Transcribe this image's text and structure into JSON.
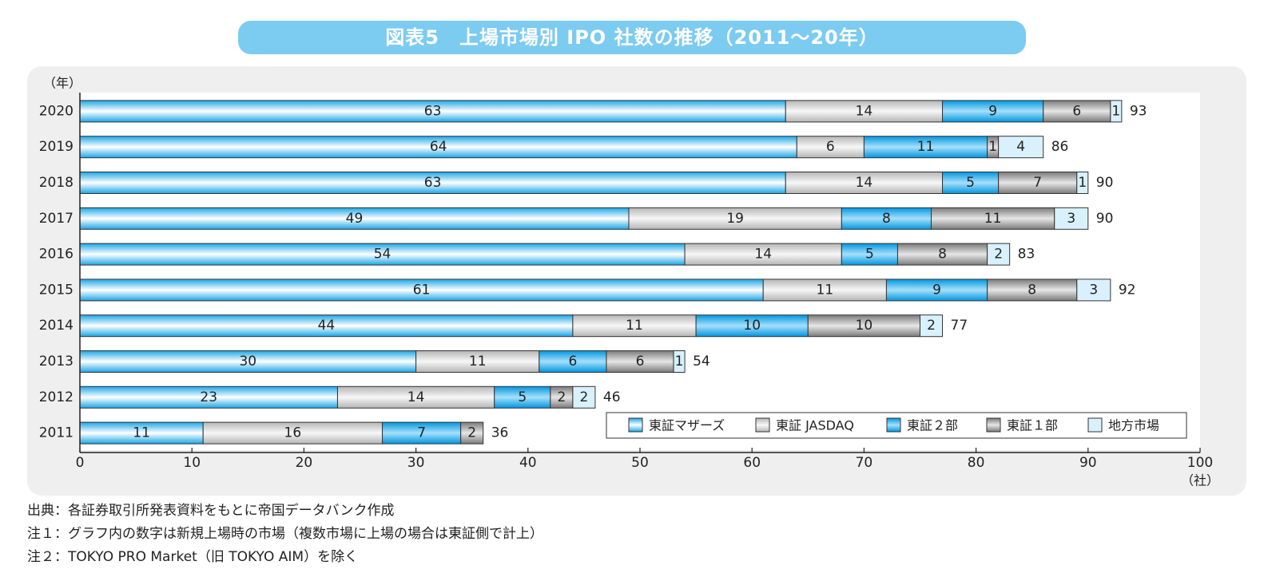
{
  "title": "図表5　上場市場別 IPO 社数の推移（2011～20年）",
  "chart_data": {
    "type": "bar",
    "orientation": "horizontal",
    "stacked": true,
    "year_axis_label": "（年）",
    "x_unit_label": "（社）",
    "xlim": [
      0,
      100
    ],
    "x_ticks": [
      0,
      10,
      20,
      30,
      40,
      50,
      60,
      70,
      80,
      90,
      100
    ],
    "categories": [
      "2020",
      "2019",
      "2018",
      "2017",
      "2016",
      "2015",
      "2014",
      "2013",
      "2012",
      "2011"
    ],
    "series": [
      {
        "name": "東証マザーズ",
        "values": [
          63,
          64,
          63,
          49,
          54,
          61,
          44,
          30,
          23,
          11
        ],
        "style": "blue-light"
      },
      {
        "name": "東証 JASDAQ",
        "values": [
          14,
          6,
          14,
          19,
          14,
          11,
          11,
          11,
          14,
          16
        ],
        "style": "gray-light"
      },
      {
        "name": "東証２部",
        "values": [
          9,
          11,
          5,
          8,
          5,
          9,
          10,
          6,
          5,
          7
        ],
        "style": "blue-deep"
      },
      {
        "name": "東証１部",
        "values": [
          6,
          1,
          7,
          11,
          8,
          8,
          10,
          6,
          2,
          2
        ],
        "style": "gray-dark"
      },
      {
        "name": "地方市場",
        "values": [
          1,
          4,
          1,
          3,
          2,
          3,
          2,
          1,
          2,
          0
        ],
        "style": "pale-blue"
      }
    ],
    "totals": [
      93,
      86,
      90,
      90,
      83,
      92,
      77,
      54,
      46,
      36
    ],
    "legend_position": "bottom-right inside plot",
    "grid": false
  },
  "colors": {
    "banner": "#7ccbf1",
    "panel": "#efefef",
    "blue_light_edge": "#1aa6e6",
    "blue_light_mid": "#ffffff",
    "blue_deep_edge": "#0096df",
    "blue_deep_mid": "#a6e0fb",
    "gray_light_edge": "#b5b5b5",
    "gray_light_mid": "#f7f7f7",
    "gray_dark_edge": "#7a7a7a",
    "gray_dark_mid": "#e6e6e6",
    "pale_blue": "#d8f1fc"
  },
  "notes": [
    "出典：各証券取引所発表資料をもとに帝国データバンク作成",
    "注１：グラフ内の数字は新規上場時の市場（複数市場に上場の場合は東証側で計上）",
    "注２：TOKYO PRO Market（旧 TOKYO AIM）を除く"
  ]
}
